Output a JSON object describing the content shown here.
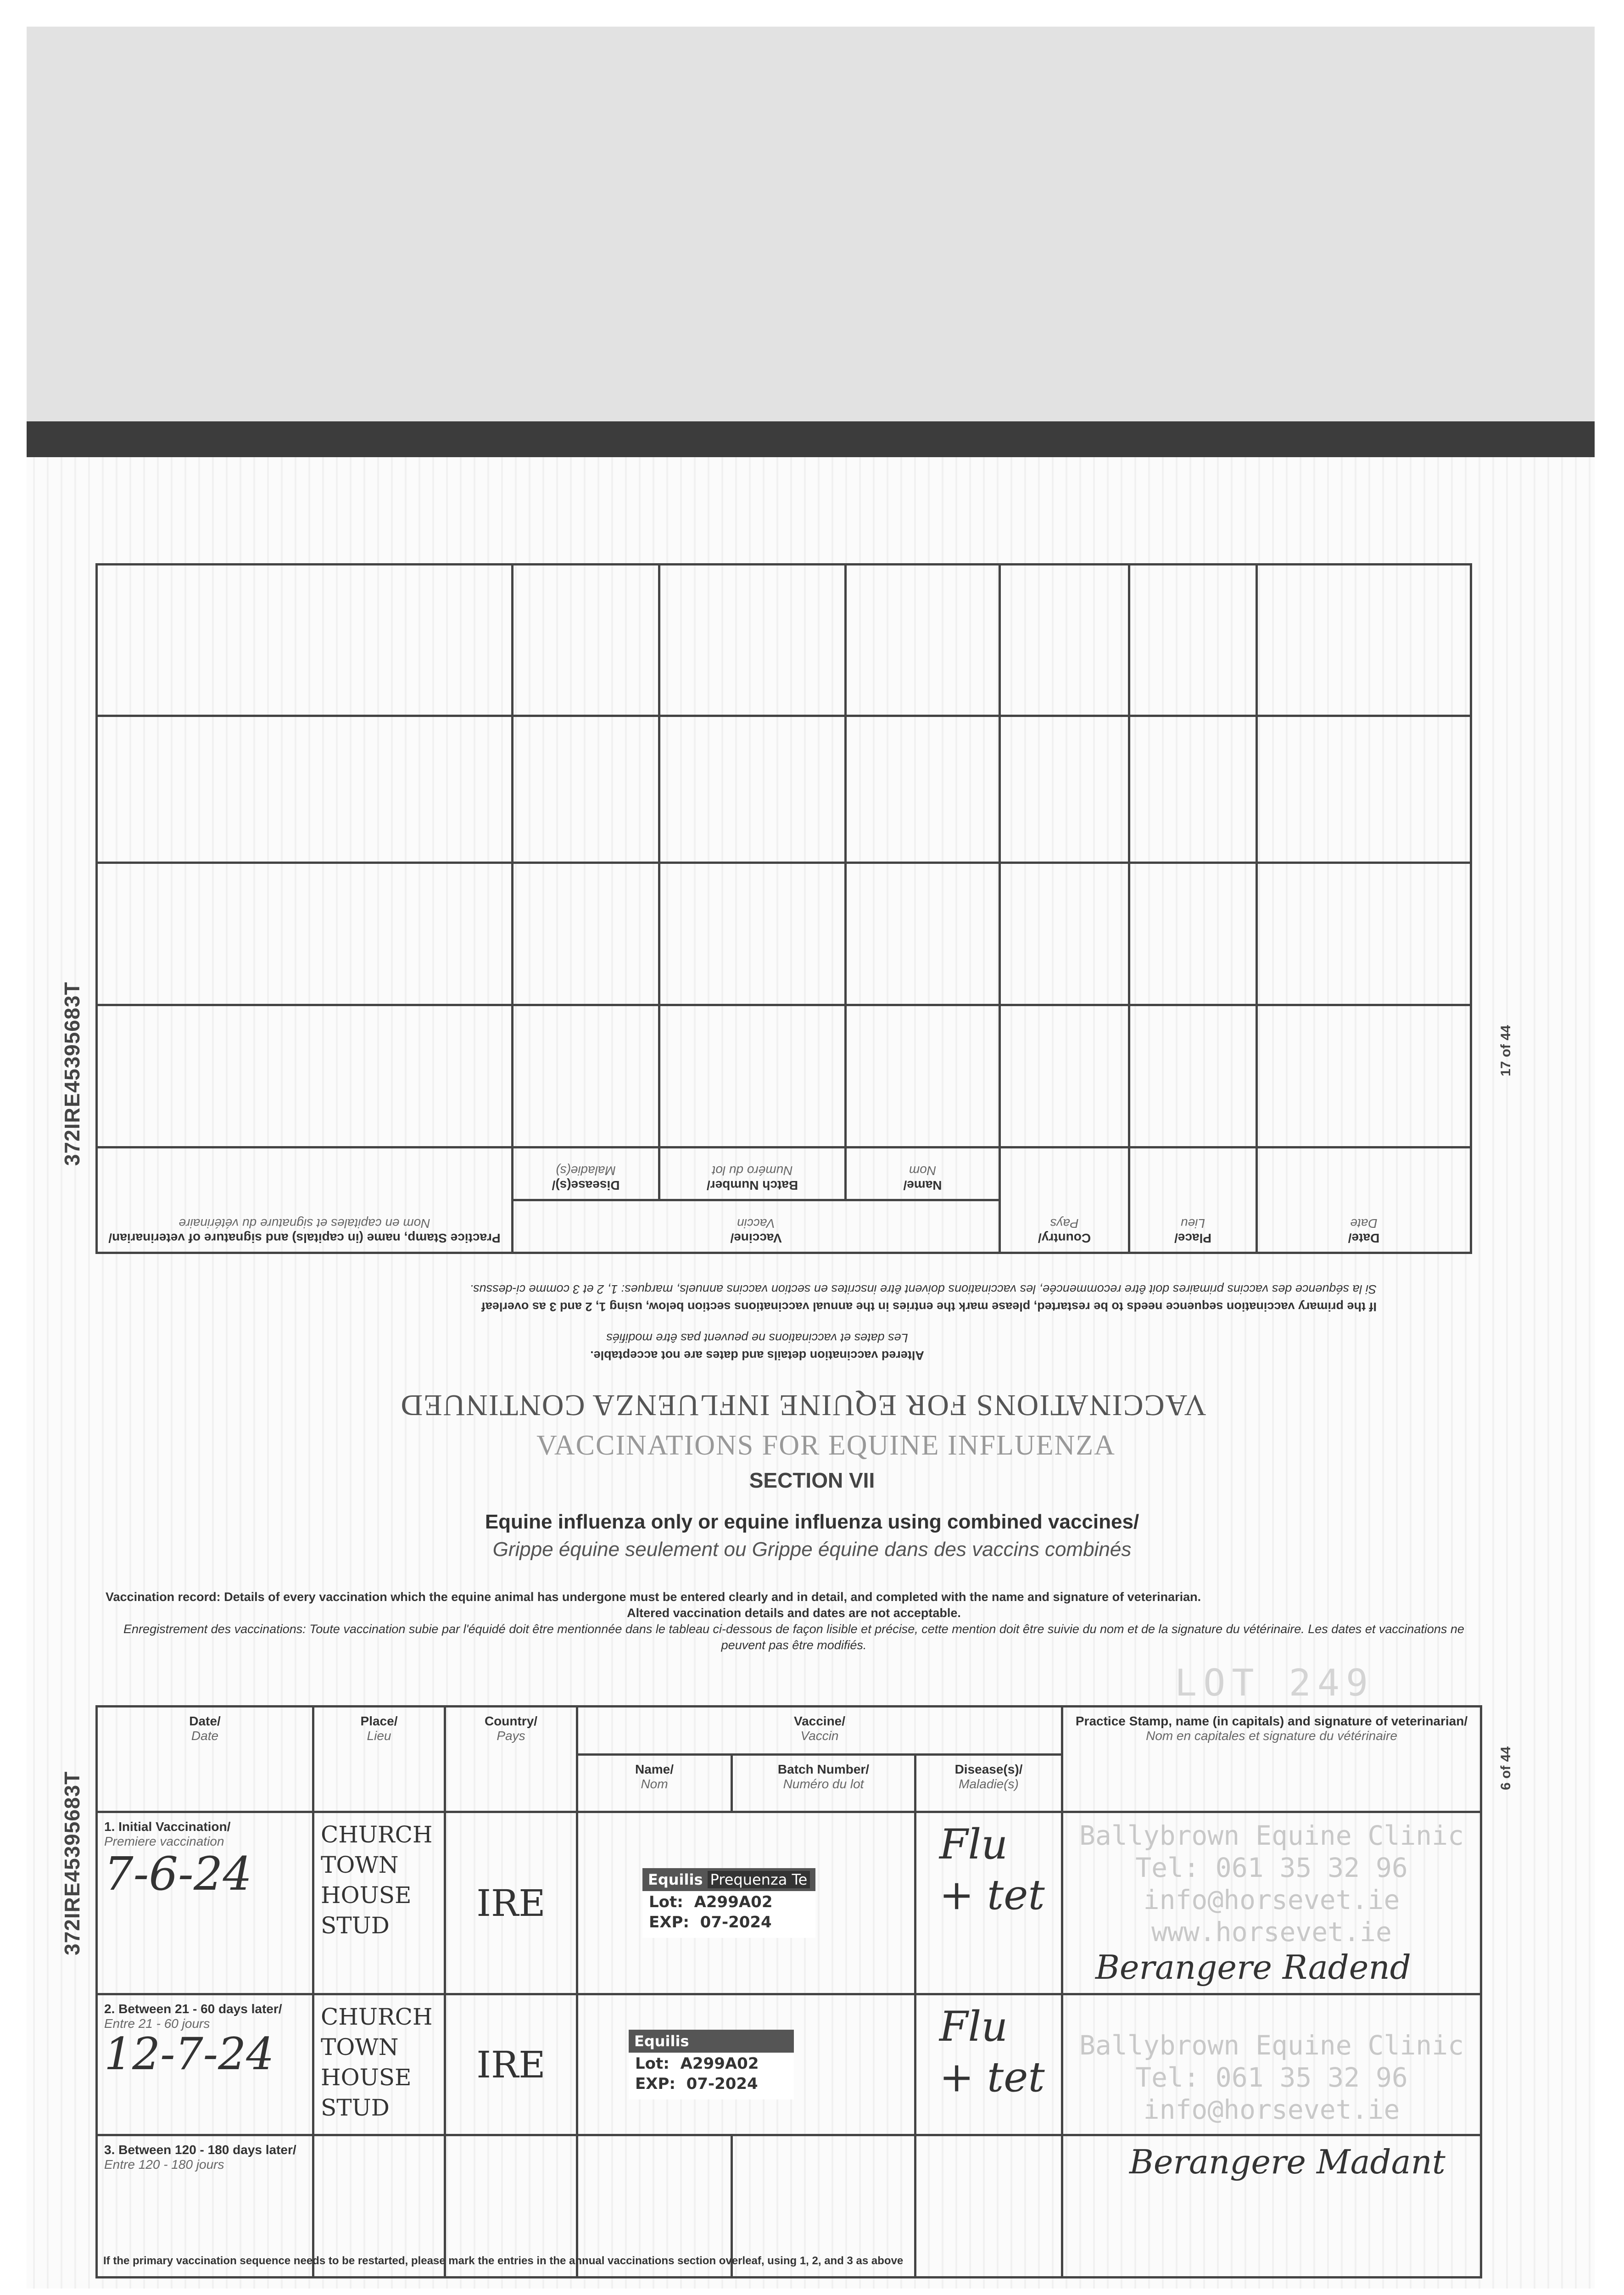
{
  "passport_id": "372IRE45395683T",
  "upper_page": {
    "page_number": "17 of 44",
    "heading": "VACCINATIONS FOR EQUINE INFLUENZA CONTINUED",
    "altered_en": "Altered vaccination details and dates are not acceptable.",
    "altered_fr": "Les dates et vaccinations ne peuvent pas être modifiés",
    "restart_en": "If the primary vaccination sequence needs to be restarted, please mark the entries in the annual vaccinations section below, using 1, 2 and 3 as overleaf",
    "restart_fr": "Si la séquence des vaccins primaires doit être recommencée, les vaccinations doivent être inscrites en section vaccins annuels, marques: 1, 2 et 3 comme ci-dessus.",
    "columns": {
      "date": "Date/",
      "date_fr": "Date",
      "place": "Place/",
      "place_fr": "Lieu",
      "country": "Country/",
      "country_fr": "Pays",
      "vaccine": "Vaccine/",
      "vaccine_fr": "Vaccin",
      "name": "Name/",
      "name_fr": "Nom",
      "batch": "Batch Number/",
      "batch_fr": "Numéro du lot",
      "disease": "Disease(s)/",
      "disease_fr": "Maladie(s)",
      "practice": "Practice Stamp, name (in capitals) and signature of veterinarian/",
      "practice_fr": "Nom en capitales et signature du vétérinaire"
    }
  },
  "lower_page": {
    "page_number": "6 of 44",
    "heading": "VACCINATIONS FOR EQUINE INFLUENZA",
    "section": "SECTION VII",
    "title_en": "Equine influenza only or equine influenza using combined vaccines/",
    "title_fr": "Grippe équine seulement ou Grippe équine dans des vaccins combinés",
    "record_label": "Vaccination record:",
    "record_en": "Details of every vaccination which the equine animal has undergone must be entered clearly and in detail, and completed with the name and signature of veterinarian.",
    "altered_en": "Altered vaccination details and dates are not acceptable.",
    "record_fr_label": "Enregistrement des vaccinations:",
    "record_fr": "Toute vaccination subie par l'équidé doit être mentionnée dans le tableau ci-dessous de façon lisible et précise, cette mention doit être suivie du nom et de la signature du vétérinaire. Les dates et vaccinations ne peuvent pas être modifiés.",
    "lot_mark": "LOT 249",
    "columns": {
      "date": "Date/",
      "date_fr": "Date",
      "place": "Place/",
      "place_fr": "Lieu",
      "country": "Country/",
      "country_fr": "Pays",
      "vaccine": "Vaccine/",
      "vaccine_fr": "Vaccin",
      "name": "Name/",
      "name_fr": "Nom",
      "batch": "Batch Number/",
      "batch_fr": "Numéro du lot",
      "disease": "Disease(s)/",
      "disease_fr": "Maladie(s)",
      "practice": "Practice Stamp, name (in capitals) and signature of veterinarian/",
      "practice_fr": "Nom en capitales et signature du vétérinaire"
    },
    "rows": [
      {
        "label": "1. Initial Vaccination/",
        "label_fr": "Premiere vaccination",
        "date": "7-6-24",
        "place": "CHURCH TOWN HOUSE STUD",
        "country": "IRE",
        "sticker_brand": "Equilis",
        "sticker_product": "Prequenza Te",
        "lot_label": "Lot:",
        "lot": "A299A02",
        "exp_label": "EXP:",
        "exp": "07-2024",
        "disease": "Flu + tet",
        "stamp": "Ballybrown Equine Clinic Tel: 061 35 32 96 info@horsevet.ie www.horsevet.ie",
        "signature": "Berangere Radend"
      },
      {
        "label": "2. Between 21 - 60 days later/",
        "label_fr": "Entre 21 - 60 jours",
        "date": "12-7-24",
        "place": "CHURCH TOWN HOUSE STUD",
        "country": "IRE",
        "sticker_brand": "Equilis",
        "sticker_product": "",
        "lot_label": "Lot:",
        "lot": "A299A02",
        "exp_label": "EXP:",
        "exp": "07-2024",
        "disease": "Flu + tet",
        "stamp": "Ballybrown Equine Clinic Tel: 061 35 32 96 info@horsevet.ie",
        "signature": "Berangere Madant"
      },
      {
        "label": "3. Between 120 - 180 days later/",
        "label_fr": "Entre 120 - 180 jours",
        "date": "",
        "place": "",
        "country": "",
        "disease": "",
        "signature": ""
      }
    ],
    "footer": "If the primary vaccination sequence needs to be restarted, please mark the entries in the annual vaccinations section overleaf, using 1, 2, and 3 as above"
  }
}
